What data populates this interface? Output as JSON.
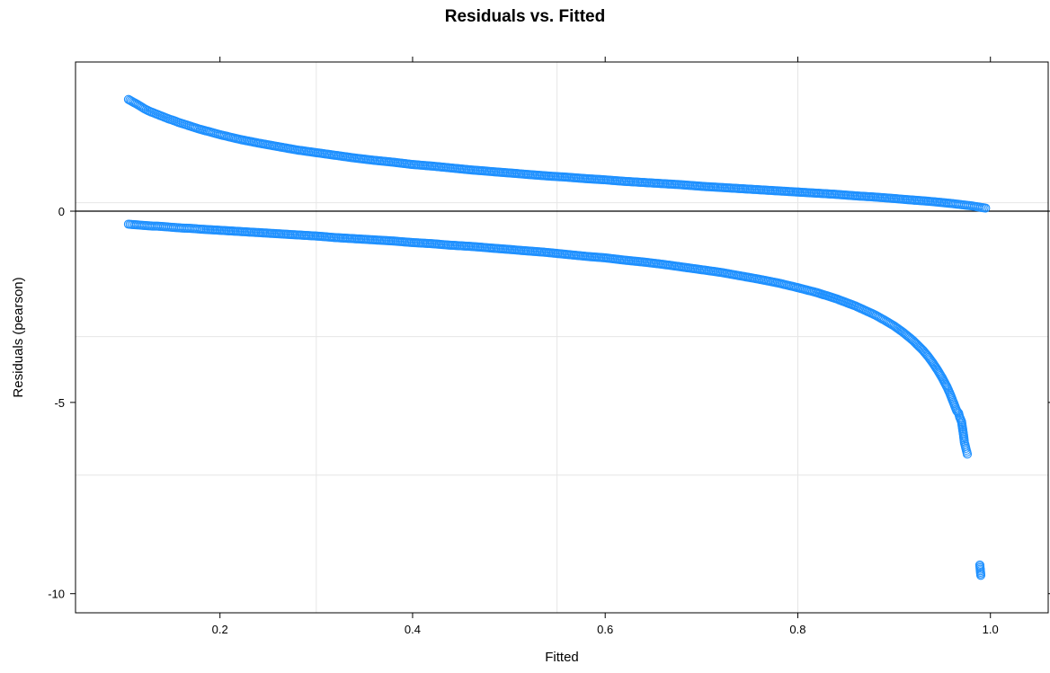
{
  "chart_data": {
    "type": "scatter",
    "title": "Residuals vs. Fitted",
    "xlabel": "Fitted",
    "ylabel": "Residuals (pearson)",
    "xlim": [
      0.05,
      1.06
    ],
    "ylim": [
      -10.5,
      3.9
    ],
    "x_ticks": [
      {
        "value": 0.2,
        "label": "0.2"
      },
      {
        "value": 0.4,
        "label": "0.4"
      },
      {
        "value": 0.6,
        "label": "0.6"
      },
      {
        "value": 0.8,
        "label": "0.8"
      },
      {
        "value": 1.0,
        "label": "1.0"
      }
    ],
    "y_ticks": [
      {
        "value": 0,
        "label": "0"
      },
      {
        "value": -5,
        "label": "-5"
      },
      {
        "value": -10,
        "label": "-10"
      }
    ],
    "grid": true,
    "grid_x": [
      0.3,
      0.55,
      0.8
    ],
    "grid_y": [
      0.22,
      -3.28,
      -6.9
    ],
    "reference_line": {
      "y": 0,
      "color": "#000000"
    },
    "marker_color": "#1E90FF",
    "series": [
      {
        "points": [
          {
            "x": 0.105,
            "y": 2.92
          },
          {
            "x": 0.115,
            "y": 2.78
          },
          {
            "x": 0.122,
            "y": 2.67
          },
          {
            "x": 0.127,
            "y": 2.61
          },
          {
            "x": 0.132,
            "y": 2.56
          },
          {
            "x": 0.137,
            "y": 2.51
          },
          {
            "x": 0.142,
            "y": 2.46
          },
          {
            "x": 0.147,
            "y": 2.41
          },
          {
            "x": 0.152,
            "y": 2.37
          },
          {
            "x": 0.157,
            "y": 2.32
          },
          {
            "x": 0.162,
            "y": 2.28
          },
          {
            "x": 0.167,
            "y": 2.24
          },
          {
            "x": 0.172,
            "y": 2.2
          },
          {
            "x": 0.178,
            "y": 2.15
          },
          {
            "x": 0.19,
            "y": 2.07
          },
          {
            "x": 0.2,
            "y": 2.0
          },
          {
            "x": 0.22,
            "y": 1.88
          },
          {
            "x": 0.24,
            "y": 1.78
          },
          {
            "x": 0.26,
            "y": 1.69
          },
          {
            "x": 0.28,
            "y": 1.6
          },
          {
            "x": 0.3,
            "y": 1.53
          },
          {
            "x": 0.32,
            "y": 1.46
          },
          {
            "x": 0.34,
            "y": 1.39
          },
          {
            "x": 0.36,
            "y": 1.33
          },
          {
            "x": 0.38,
            "y": 1.28
          },
          {
            "x": 0.4,
            "y": 1.22
          },
          {
            "x": 0.42,
            "y": 1.18
          },
          {
            "x": 0.44,
            "y": 1.13
          },
          {
            "x": 0.46,
            "y": 1.08
          },
          {
            "x": 0.48,
            "y": 1.04
          },
          {
            "x": 0.5,
            "y": 1.0
          },
          {
            "x": 0.52,
            "y": 0.96
          },
          {
            "x": 0.54,
            "y": 0.92
          },
          {
            "x": 0.56,
            "y": 0.89
          },
          {
            "x": 0.58,
            "y": 0.85
          },
          {
            "x": 0.6,
            "y": 0.82
          },
          {
            "x": 0.62,
            "y": 0.78
          },
          {
            "x": 0.64,
            "y": 0.75
          },
          {
            "x": 0.66,
            "y": 0.72
          },
          {
            "x": 0.68,
            "y": 0.69
          },
          {
            "x": 0.7,
            "y": 0.65
          },
          {
            "x": 0.72,
            "y": 0.62
          },
          {
            "x": 0.74,
            "y": 0.59
          },
          {
            "x": 0.76,
            "y": 0.56
          },
          {
            "x": 0.78,
            "y": 0.53
          },
          {
            "x": 0.8,
            "y": 0.5
          },
          {
            "x": 0.82,
            "y": 0.47
          },
          {
            "x": 0.84,
            "y": 0.44
          },
          {
            "x": 0.86,
            "y": 0.4
          },
          {
            "x": 0.88,
            "y": 0.37
          },
          {
            "x": 0.9,
            "y": 0.33
          },
          {
            "x": 0.92,
            "y": 0.29
          },
          {
            "x": 0.94,
            "y": 0.25
          },
          {
            "x": 0.96,
            "y": 0.2
          },
          {
            "x": 0.97,
            "y": 0.17
          },
          {
            "x": 0.98,
            "y": 0.14
          },
          {
            "x": 0.99,
            "y": 0.1
          },
          {
            "x": 0.995,
            "y": 0.08
          },
          {
            "x": 0.105,
            "y": -0.34
          },
          {
            "x": 0.115,
            "y": -0.36
          },
          {
            "x": 0.12,
            "y": -0.37
          },
          {
            "x": 0.125,
            "y": -0.38
          },
          {
            "x": 0.13,
            "y": -0.39
          },
          {
            "x": 0.135,
            "y": -0.39
          },
          {
            "x": 0.14,
            "y": -0.4
          },
          {
            "x": 0.145,
            "y": -0.41
          },
          {
            "x": 0.15,
            "y": -0.42
          },
          {
            "x": 0.16,
            "y": -0.44
          },
          {
            "x": 0.17,
            "y": -0.45
          },
          {
            "x": 0.18,
            "y": -0.47
          },
          {
            "x": 0.2,
            "y": -0.5
          },
          {
            "x": 0.22,
            "y": -0.53
          },
          {
            "x": 0.24,
            "y": -0.56
          },
          {
            "x": 0.26,
            "y": -0.59
          },
          {
            "x": 0.28,
            "y": -0.62
          },
          {
            "x": 0.3,
            "y": -0.65
          },
          {
            "x": 0.32,
            "y": -0.69
          },
          {
            "x": 0.34,
            "y": -0.72
          },
          {
            "x": 0.36,
            "y": -0.75
          },
          {
            "x": 0.38,
            "y": -0.78
          },
          {
            "x": 0.4,
            "y": -0.82
          },
          {
            "x": 0.42,
            "y": -0.85
          },
          {
            "x": 0.44,
            "y": -0.89
          },
          {
            "x": 0.46,
            "y": -0.92
          },
          {
            "x": 0.48,
            "y": -0.96
          },
          {
            "x": 0.5,
            "y": -1.0
          },
          {
            "x": 0.52,
            "y": -1.04
          },
          {
            "x": 0.54,
            "y": -1.08
          },
          {
            "x": 0.56,
            "y": -1.13
          },
          {
            "x": 0.58,
            "y": -1.18
          },
          {
            "x": 0.6,
            "y": -1.22
          },
          {
            "x": 0.62,
            "y": -1.28
          },
          {
            "x": 0.64,
            "y": -1.33
          },
          {
            "x": 0.66,
            "y": -1.39
          },
          {
            "x": 0.68,
            "y": -1.46
          },
          {
            "x": 0.7,
            "y": -1.53
          },
          {
            "x": 0.72,
            "y": -1.6
          },
          {
            "x": 0.74,
            "y": -1.69
          },
          {
            "x": 0.76,
            "y": -1.78
          },
          {
            "x": 0.78,
            "y": -1.88
          },
          {
            "x": 0.8,
            "y": -2.0
          },
          {
            "x": 0.82,
            "y": -2.13
          },
          {
            "x": 0.84,
            "y": -2.29
          },
          {
            "x": 0.86,
            "y": -2.48
          },
          {
            "x": 0.88,
            "y": -2.71
          },
          {
            "x": 0.89,
            "y": -2.85
          },
          {
            "x": 0.9,
            "y": -3.0
          },
          {
            "x": 0.91,
            "y": -3.18
          },
          {
            "x": 0.92,
            "y": -3.39
          },
          {
            "x": 0.93,
            "y": -3.64
          },
          {
            "x": 0.935,
            "y": -3.79
          },
          {
            "x": 0.94,
            "y": -3.96
          },
          {
            "x": 0.945,
            "y": -4.15
          },
          {
            "x": 0.95,
            "y": -4.36
          },
          {
            "x": 0.955,
            "y": -4.6
          },
          {
            "x": 0.958,
            "y": -4.77
          },
          {
            "x": 0.965,
            "y": -5.22
          },
          {
            "x": 0.967,
            "y": -5.28
          },
          {
            "x": 0.968,
            "y": -5.38
          },
          {
            "x": 0.97,
            "y": -5.5
          },
          {
            "x": 0.972,
            "y": -5.84
          },
          {
            "x": 0.973,
            "y": -6.05
          },
          {
            "x": 0.974,
            "y": -6.15
          },
          {
            "x": 0.975,
            "y": -6.25
          },
          {
            "x": 0.976,
            "y": -6.35
          },
          {
            "x": 0.989,
            "y": -9.25
          },
          {
            "x": 0.99,
            "y": -9.52
          }
        ]
      }
    ]
  }
}
